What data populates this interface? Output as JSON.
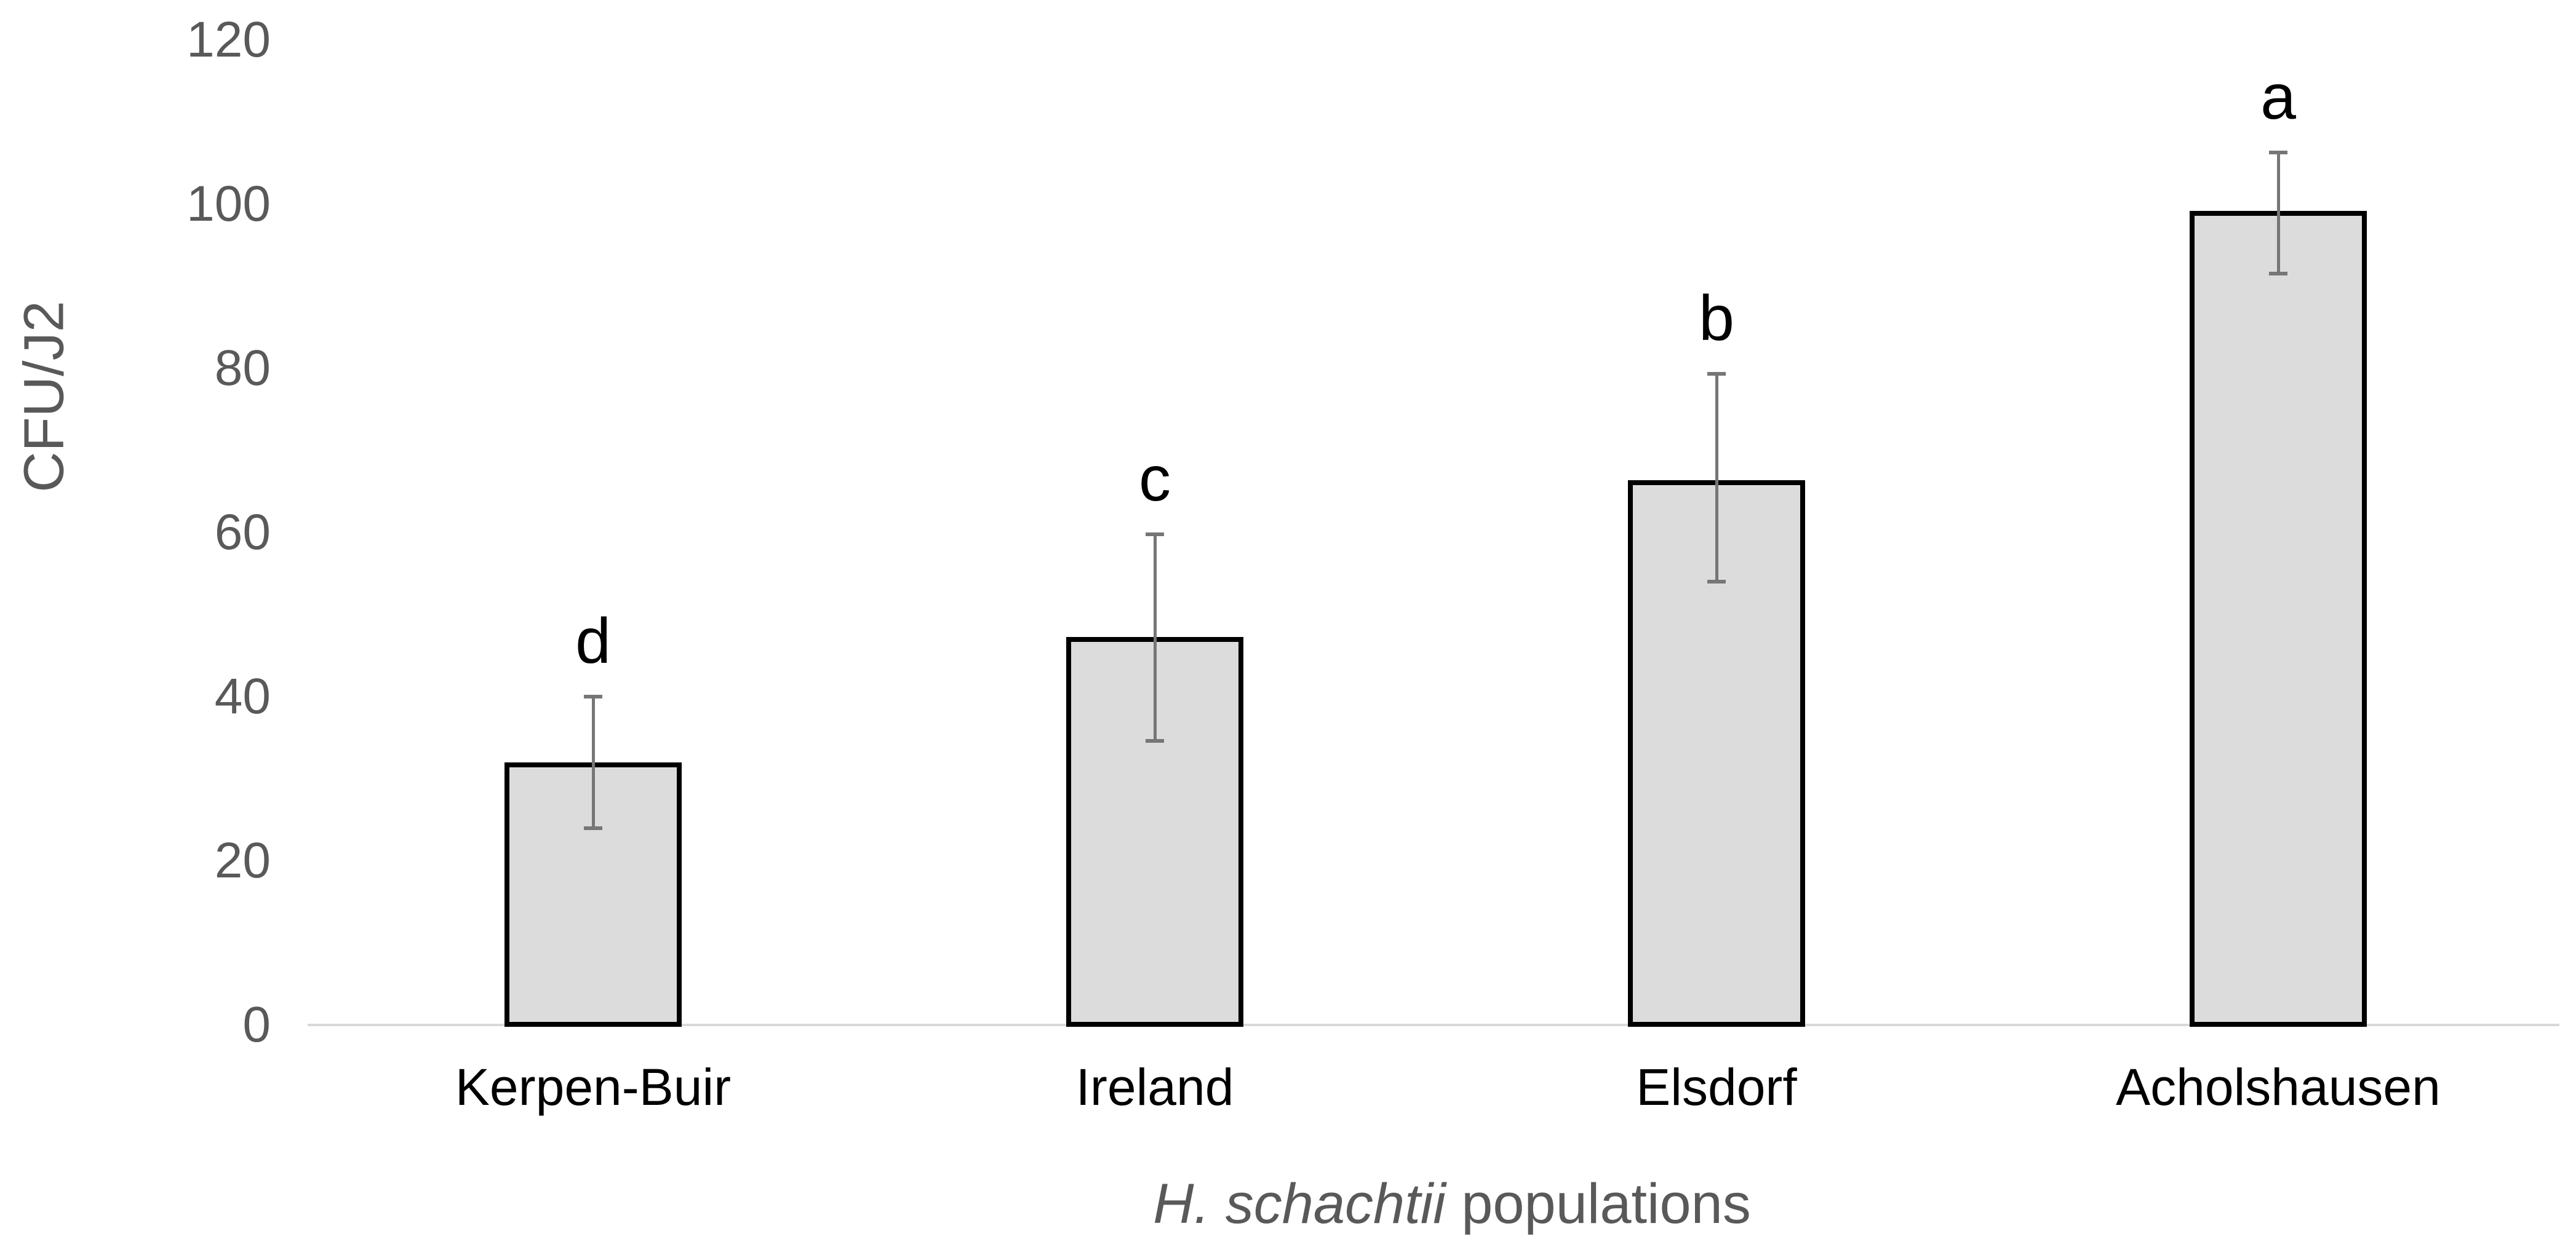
{
  "chart_data": {
    "type": "bar",
    "title": "",
    "ylabel": "CFU/J2",
    "xlabel_italic": "H. schachtii",
    "xlabel_regular": " populations",
    "categories": [
      "Kerpen-Buir",
      "Ireland",
      "Elsdorf",
      "Acholshausen"
    ],
    "values": [
      32,
      47.3,
      66.4,
      99.2
    ],
    "error_upper": [
      40,
      59.8,
      79.3,
      106.3
    ],
    "error_lower": [
      24,
      34.6,
      54,
      91.5
    ],
    "sig_letters": [
      "d",
      "c",
      "b",
      "a"
    ],
    "ylim": [
      0,
      120
    ],
    "yticks": [
      0,
      20,
      40,
      60,
      80,
      100,
      120
    ],
    "grid": false,
    "legend": "none",
    "colors": {
      "bar_fill": "#dcdcdc",
      "bar_border": "#000000",
      "error_bar": "#767676",
      "axis_line": "#d9d9d9",
      "axis_text": "#595959",
      "category_text": "#000000",
      "letter_text": "#000000"
    }
  }
}
